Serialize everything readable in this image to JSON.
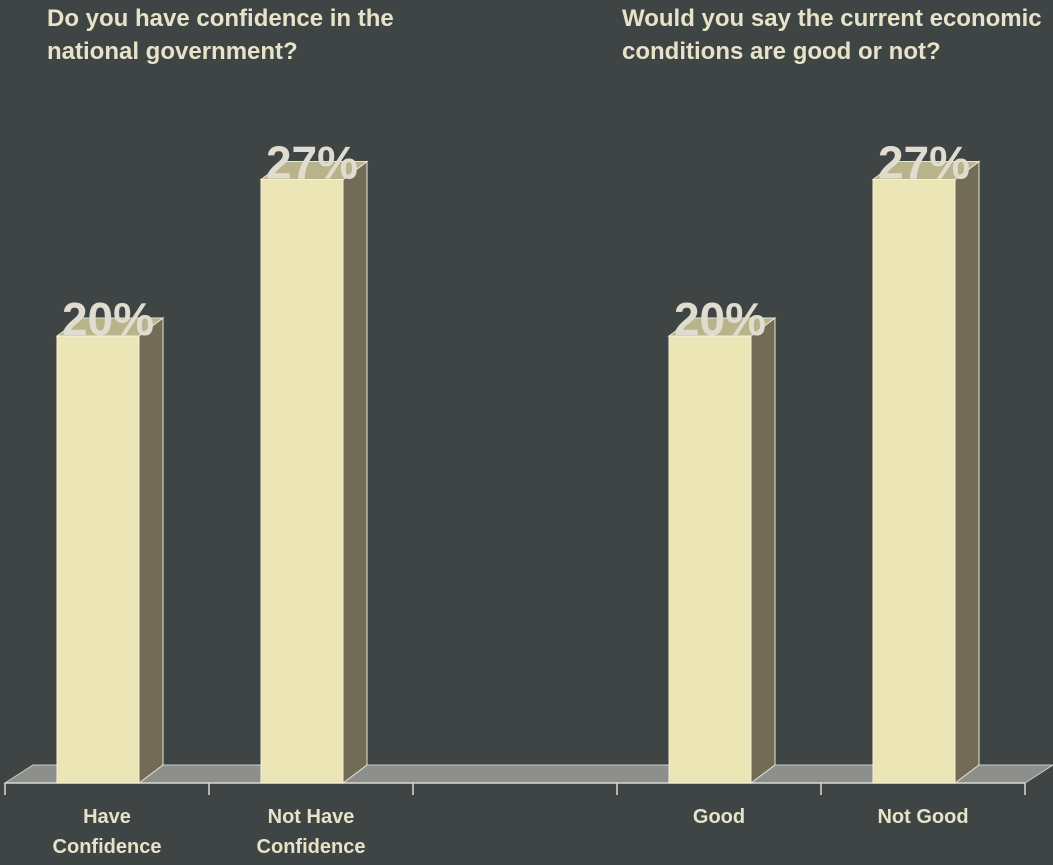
{
  "questions": {
    "q1": "Do you have confidence in the national government?",
    "q2": "Would you say the current economic conditions are good or not?"
  },
  "colors": {
    "background": "#3f4444",
    "bar_front": "#ece5b5",
    "bar_side": "#726c57",
    "bar_top": "#b9b38c",
    "floor": "#8d8f8d",
    "text": "#e6e3c8"
  },
  "chart_data": {
    "type": "bar",
    "ylim": [
      0,
      30
    ],
    "grid": false,
    "categories": [
      [
        "Have",
        "Confidence"
      ],
      [
        "Not Have",
        "Confidence"
      ],
      [
        "",
        ""
      ],
      [
        "Good",
        ""
      ],
      [
        "Not Good",
        ""
      ]
    ],
    "values": [
      20,
      27,
      null,
      20,
      27
    ],
    "data_labels": [
      "20%",
      "27%",
      "",
      "20%",
      "27%"
    ]
  }
}
